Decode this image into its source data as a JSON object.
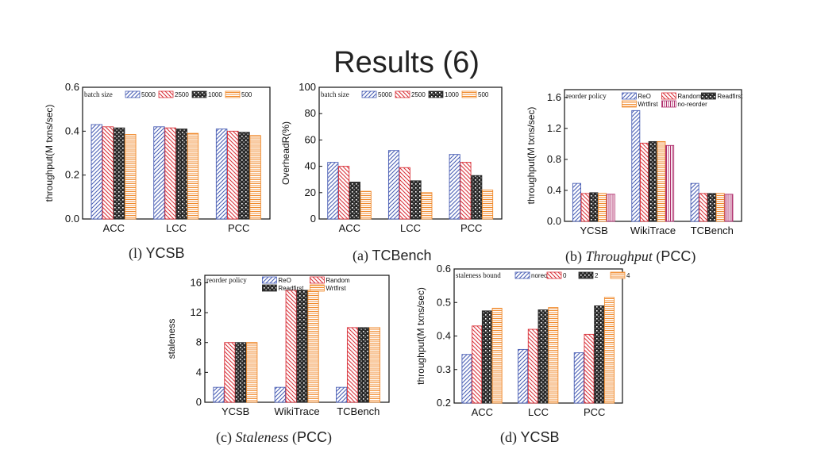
{
  "slide": {
    "title": "Results (6)"
  },
  "captions": [
    {
      "prefix": "(l)",
      "label": "YCSB",
      "suffix": "",
      "italic": false
    },
    {
      "prefix": "(a)",
      "label": "TCBench",
      "suffix": "",
      "italic": false
    },
    {
      "prefix": "(b)",
      "label": "Throughput",
      "suffix": "PCC",
      "italic": true
    },
    {
      "prefix": "(c)",
      "label": "Staleness",
      "suffix": "PCC",
      "italic": true
    },
    {
      "prefix": "(d)",
      "label": "YCSB",
      "suffix": "",
      "italic": false
    }
  ],
  "series_colors": {
    "blue": "#4a5fb5",
    "red": "#d9323a",
    "black": "#2a2a2a",
    "orange": "#f08a2c",
    "purple": "#b0306e"
  },
  "chart_data": [
    {
      "id": "chart-l",
      "type": "bar",
      "ylabel": "throughput(M txns/sec)",
      "ylim": [
        0,
        0.6
      ],
      "yticks": [
        "0.0",
        "0.2",
        "0.4",
        "0.6"
      ],
      "ytick_values": [
        0,
        0.2,
        0.4,
        0.6
      ],
      "legend_title": "batch size",
      "categories": [
        "ACC",
        "LCC",
        "PCC"
      ],
      "series": [
        {
          "name": "5000",
          "values": [
            0.43,
            0.42,
            0.41
          ],
          "color": "blue",
          "pattern": "bdiag"
        },
        {
          "name": "2500",
          "values": [
            0.42,
            0.415,
            0.4
          ],
          "color": "red",
          "pattern": "fdiag"
        },
        {
          "name": "1000",
          "values": [
            0.415,
            0.41,
            0.395
          ],
          "color": "black",
          "pattern": "check"
        },
        {
          "name": "500",
          "values": [
            0.385,
            0.39,
            0.38
          ],
          "color": "orange",
          "pattern": "horiz"
        }
      ]
    },
    {
      "id": "chart-a",
      "type": "bar",
      "ylabel": "OverheadR(%)",
      "ylim": [
        0,
        100
      ],
      "yticks": [
        "0",
        "20",
        "40",
        "60",
        "80",
        "100"
      ],
      "ytick_values": [
        0,
        20,
        40,
        60,
        80,
        100
      ],
      "legend_title": "batch size",
      "categories": [
        "ACC",
        "LCC",
        "PCC"
      ],
      "series": [
        {
          "name": "5000",
          "values": [
            43,
            52,
            49
          ],
          "color": "blue",
          "pattern": "bdiag"
        },
        {
          "name": "2500",
          "values": [
            40,
            39,
            43
          ],
          "color": "red",
          "pattern": "fdiag"
        },
        {
          "name": "1000",
          "values": [
            28,
            29,
            33
          ],
          "color": "black",
          "pattern": "check"
        },
        {
          "name": "500",
          "values": [
            21,
            20,
            22
          ],
          "color": "orange",
          "pattern": "horiz"
        }
      ]
    },
    {
      "id": "chart-b",
      "type": "bar",
      "ylabel": "throughput(M txns/sec)",
      "ylim": [
        0,
        1.7
      ],
      "yticks": [
        "0.0",
        "0.4",
        "0.8",
        "1.2",
        "1.6"
      ],
      "ytick_values": [
        0,
        0.4,
        0.8,
        1.2,
        1.6
      ],
      "legend_title": "reorder policy",
      "categories": [
        "YCSB",
        "WikiTrace",
        "TCBench"
      ],
      "series": [
        {
          "name": "ReO",
          "values": [
            0.49,
            1.43,
            0.49
          ],
          "color": "blue",
          "pattern": "bdiag"
        },
        {
          "name": "Random",
          "values": [
            0.36,
            1.01,
            0.36
          ],
          "color": "red",
          "pattern": "fdiag"
        },
        {
          "name": "Readfirst",
          "values": [
            0.37,
            1.03,
            0.36
          ],
          "color": "black",
          "pattern": "check"
        },
        {
          "name": "Wrtfirst",
          "values": [
            0.36,
            1.03,
            0.36
          ],
          "color": "orange",
          "pattern": "horiz"
        },
        {
          "name": "no-reorder",
          "values": [
            0.35,
            0.98,
            0.35
          ],
          "color": "purple",
          "pattern": "vert"
        }
      ]
    },
    {
      "id": "chart-c",
      "type": "bar",
      "ylabel": "staleness",
      "ylim": [
        0,
        17
      ],
      "yticks": [
        "0",
        "4",
        "8",
        "12",
        "16"
      ],
      "ytick_values": [
        0,
        4,
        8,
        12,
        16
      ],
      "legend_title": "reorder policy",
      "categories": [
        "YCSB",
        "WikiTrace",
        "TCBench"
      ],
      "series": [
        {
          "name": "ReO",
          "values": [
            2,
            2,
            2
          ],
          "color": "blue",
          "pattern": "bdiag"
        },
        {
          "name": "Random",
          "values": [
            8,
            15,
            10
          ],
          "color": "red",
          "pattern": "fdiag"
        },
        {
          "name": "Readfirst",
          "values": [
            8,
            15,
            10
          ],
          "color": "black",
          "pattern": "check"
        },
        {
          "name": "Wrtfirst",
          "values": [
            8,
            15,
            10
          ],
          "color": "orange",
          "pattern": "horiz"
        }
      ]
    },
    {
      "id": "chart-d",
      "type": "bar",
      "ylabel": "throughput(M txns/sec)",
      "ylim": [
        0.2,
        0.6
      ],
      "yticks": [
        "0.2",
        "0.3",
        "0.4",
        "0.5",
        "0.6"
      ],
      "ytick_values": [
        0.2,
        0.3,
        0.4,
        0.5,
        0.6
      ],
      "legend_title": "staleness bound",
      "categories": [
        "ACC",
        "LCC",
        "PCC"
      ],
      "series": [
        {
          "name": "noreorder",
          "values": [
            0.345,
            0.36,
            0.35
          ],
          "color": "blue",
          "pattern": "bdiag"
        },
        {
          "name": "0",
          "values": [
            0.43,
            0.42,
            0.405
          ],
          "color": "red",
          "pattern": "fdiag"
        },
        {
          "name": "2",
          "values": [
            0.475,
            0.478,
            0.49
          ],
          "color": "black",
          "pattern": "check"
        },
        {
          "name": "4",
          "values": [
            0.483,
            0.485,
            0.515
          ],
          "color": "orange",
          "pattern": "horiz"
        }
      ]
    }
  ]
}
